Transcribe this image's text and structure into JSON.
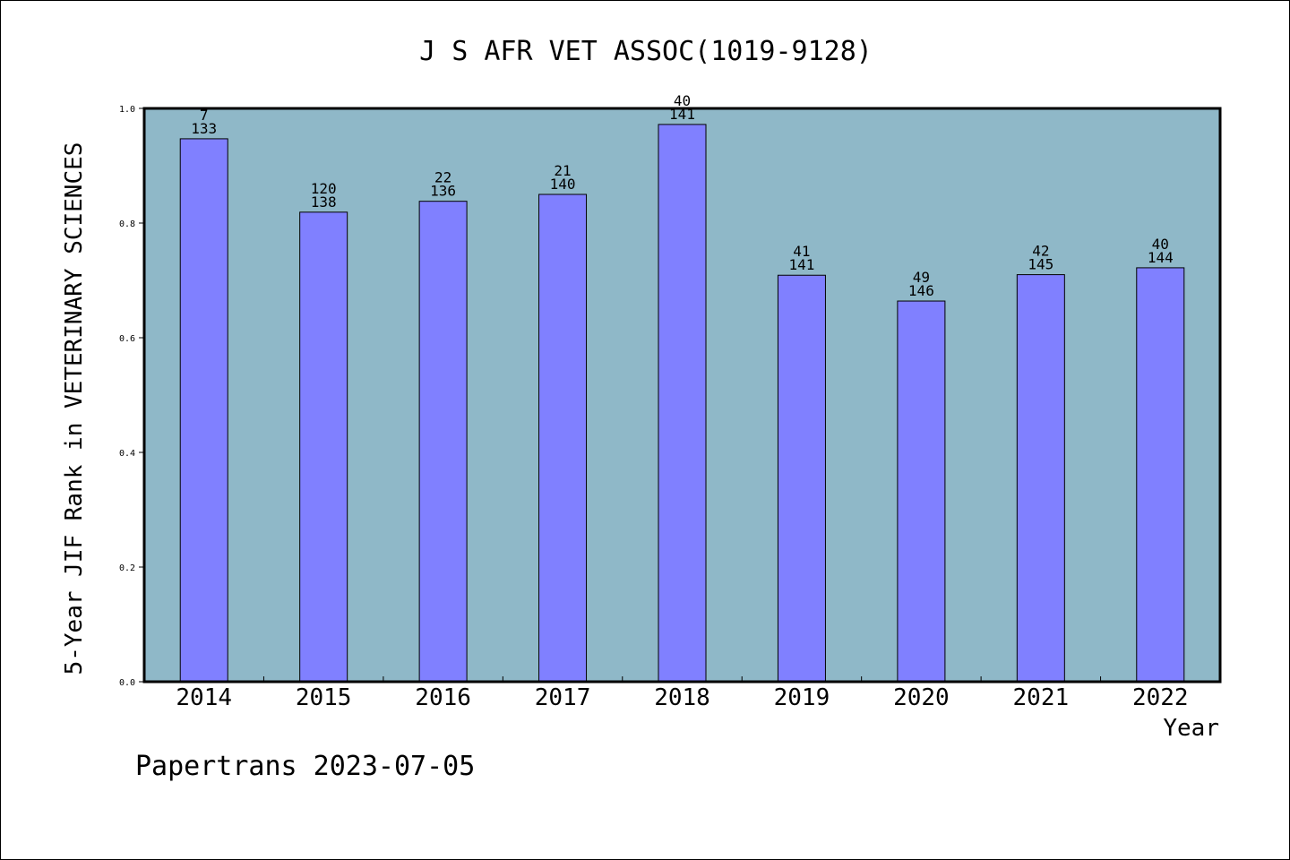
{
  "colors": {
    "plot_background": "#8fb8c8",
    "bar_fill": "#8080ff",
    "bar_stroke": "#000000",
    "axis": "#000000"
  },
  "footer": "Papertrans 2023-07-05",
  "chart_data": {
    "type": "bar",
    "title": "J S AFR VET ASSOC(1019-9128)",
    "xlabel": "Year",
    "ylabel": "5-Year JIF Rank in VETERINARY SCIENCES",
    "ylim": [
      0,
      1.0
    ],
    "yticks": [
      "0.0",
      "0.2",
      "0.4",
      "0.6",
      "0.8",
      "1.0"
    ],
    "categories": [
      "2014",
      "2015",
      "2016",
      "2017",
      "2018",
      "2019",
      "2020",
      "2021",
      "2022"
    ],
    "values": [
      0.947,
      0.819,
      0.838,
      0.85,
      0.972,
      0.709,
      0.664,
      0.71,
      0.722
    ],
    "rank": [
      "7",
      "120",
      "22",
      "21",
      "40",
      "41",
      "49",
      "42",
      "40"
    ],
    "total": [
      "133",
      "138",
      "136",
      "140",
      "141",
      "141",
      "146",
      "145",
      "144"
    ],
    "grid": false,
    "legend": "none"
  }
}
